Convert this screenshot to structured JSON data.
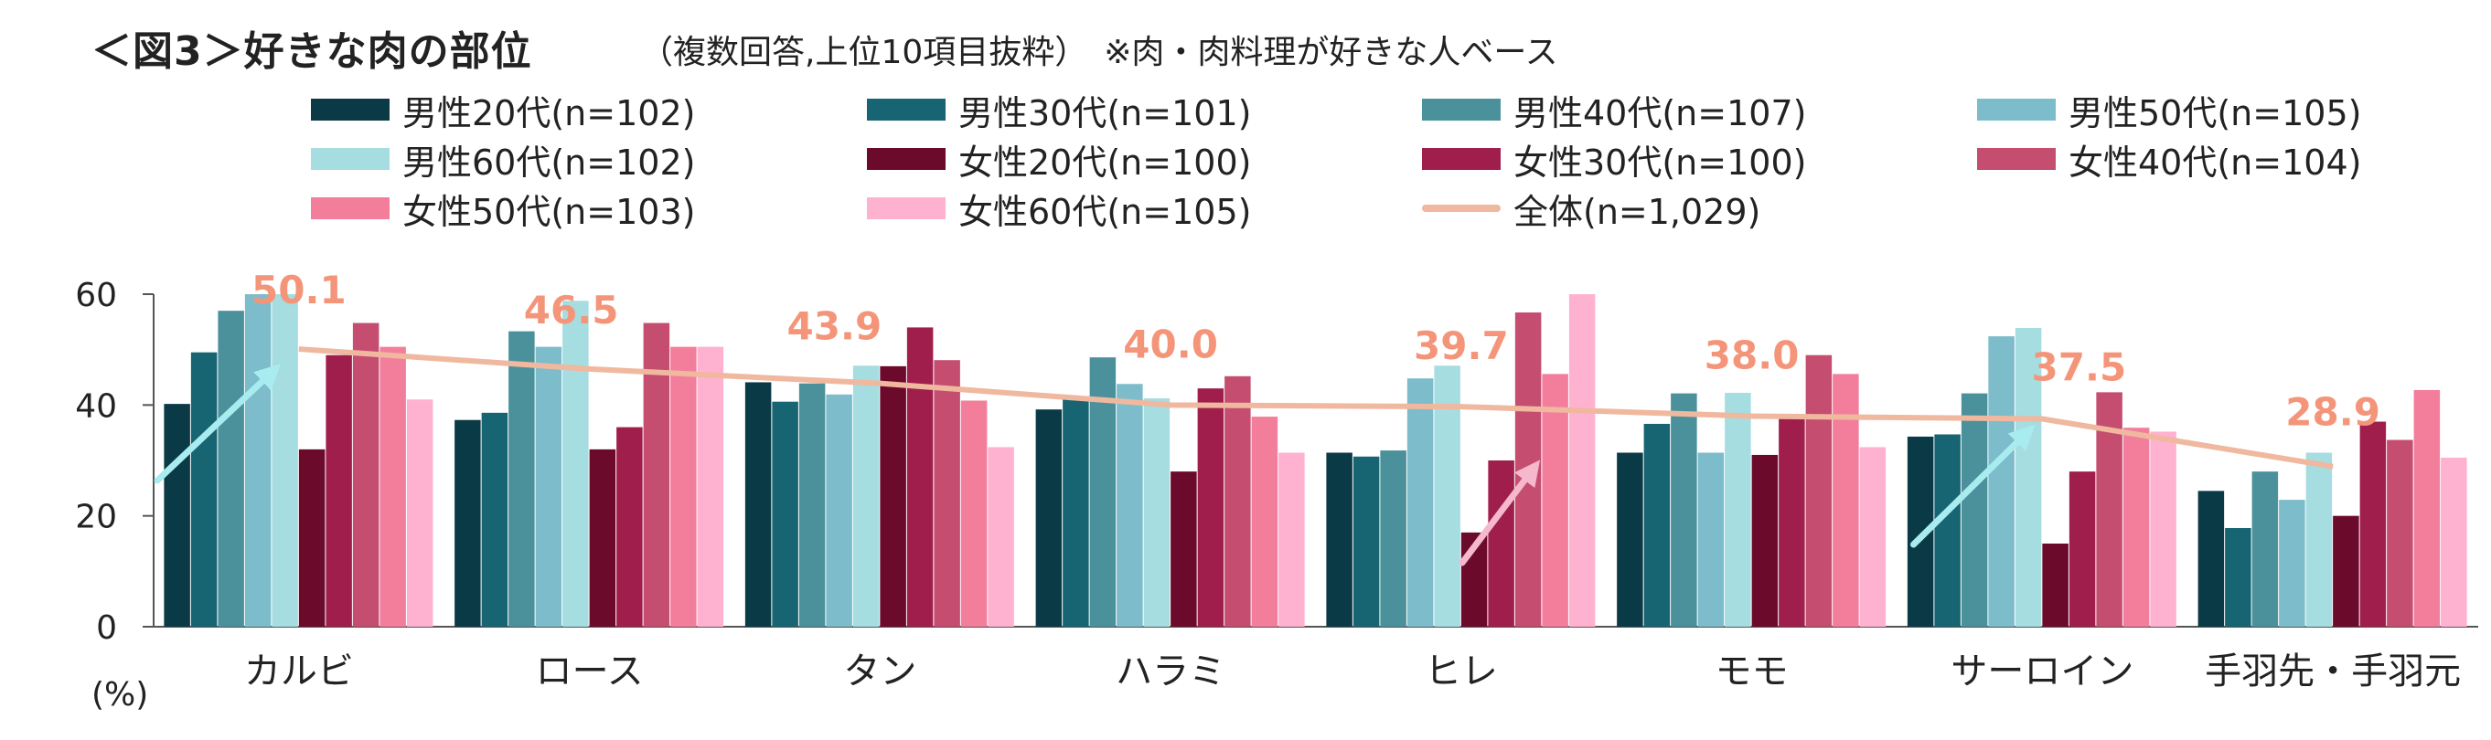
{
  "title": "＜図3＞好きな肉の部位",
  "subtitle": "（複数回答,上位10項目抜粋）　※肉・肉料理が好きな人ベース",
  "chart_data": {
    "type": "bar",
    "unit_label": "(%)",
    "ylim": [
      0,
      60
    ],
    "yticks": [
      0,
      20,
      40,
      60
    ],
    "categories": [
      "カルビ",
      "ロース",
      "タン",
      "ハラミ",
      "ヒレ",
      "モモ",
      "サーロイン",
      "手羽先・手羽元"
    ],
    "series": [
      {
        "name": "男性20代(n=102)",
        "color": "#0b3a47",
        "values": [
          40.2,
          37.3,
          44.1,
          39.2,
          31.4,
          31.4,
          34.3,
          24.5
        ]
      },
      {
        "name": "男性30代(n=101)",
        "color": "#176472",
        "values": [
          49.5,
          38.6,
          40.6,
          41.6,
          30.7,
          36.6,
          34.7,
          17.8
        ]
      },
      {
        "name": "男性40代(n=107)",
        "color": "#4b919b",
        "values": [
          57.0,
          53.3,
          43.9,
          48.6,
          31.8,
          42.1,
          42.1,
          28.0
        ]
      },
      {
        "name": "男性50代(n=105)",
        "color": "#7dbccb",
        "values": [
          60.0,
          50.5,
          41.9,
          43.8,
          44.8,
          31.4,
          52.4,
          22.9
        ]
      },
      {
        "name": "男性60代(n=102)",
        "color": "#a6dde0",
        "values": [
          60.8,
          58.8,
          47.1,
          41.2,
          47.1,
          42.2,
          53.9,
          31.4
        ]
      },
      {
        "name": "女性20代(n=100)",
        "color": "#6b0a2a",
        "values": [
          32.0,
          32.0,
          47.0,
          28.0,
          17.0,
          31.0,
          15.0,
          20.0
        ]
      },
      {
        "name": "女性30代(n=100)",
        "color": "#a01e4c",
        "values": [
          49.0,
          36.0,
          54.0,
          43.0,
          30.0,
          38.0,
          28.0,
          37.0
        ]
      },
      {
        "name": "女性40代(n=104)",
        "color": "#c44d70",
        "values": [
          54.8,
          54.8,
          48.1,
          45.2,
          56.7,
          49.0,
          42.3,
          33.7
        ]
      },
      {
        "name": "女性50代(n=103)",
        "color": "#f27e9c",
        "values": [
          50.5,
          50.5,
          40.8,
          37.9,
          45.6,
          45.6,
          35.9,
          42.7
        ]
      },
      {
        "name": "女性60代(n=105)",
        "color": "#ffb2d0",
        "values": [
          41.0,
          50.5,
          32.4,
          31.4,
          60.0,
          32.4,
          35.2,
          30.5
        ]
      }
    ],
    "overall": {
      "name": "全体(n=1,029)",
      "color": "#efb89f",
      "values": [
        50.1,
        46.5,
        43.9,
        40.0,
        39.7,
        38.0,
        37.5,
        28.9
      ],
      "labels": [
        "50.1",
        "46.5",
        "43.9",
        "40.0",
        "39.7",
        "38.0",
        "37.5",
        "28.9"
      ],
      "label_color": "#f4957a"
    },
    "annotations": [
      {
        "category_index": 0,
        "color": "#a8ecf0"
      },
      {
        "category_index": 4,
        "color": "#f6b8cc"
      },
      {
        "category_index": 6,
        "color": "#a8ecf0"
      }
    ],
    "grid": false,
    "legend_position": "top"
  }
}
